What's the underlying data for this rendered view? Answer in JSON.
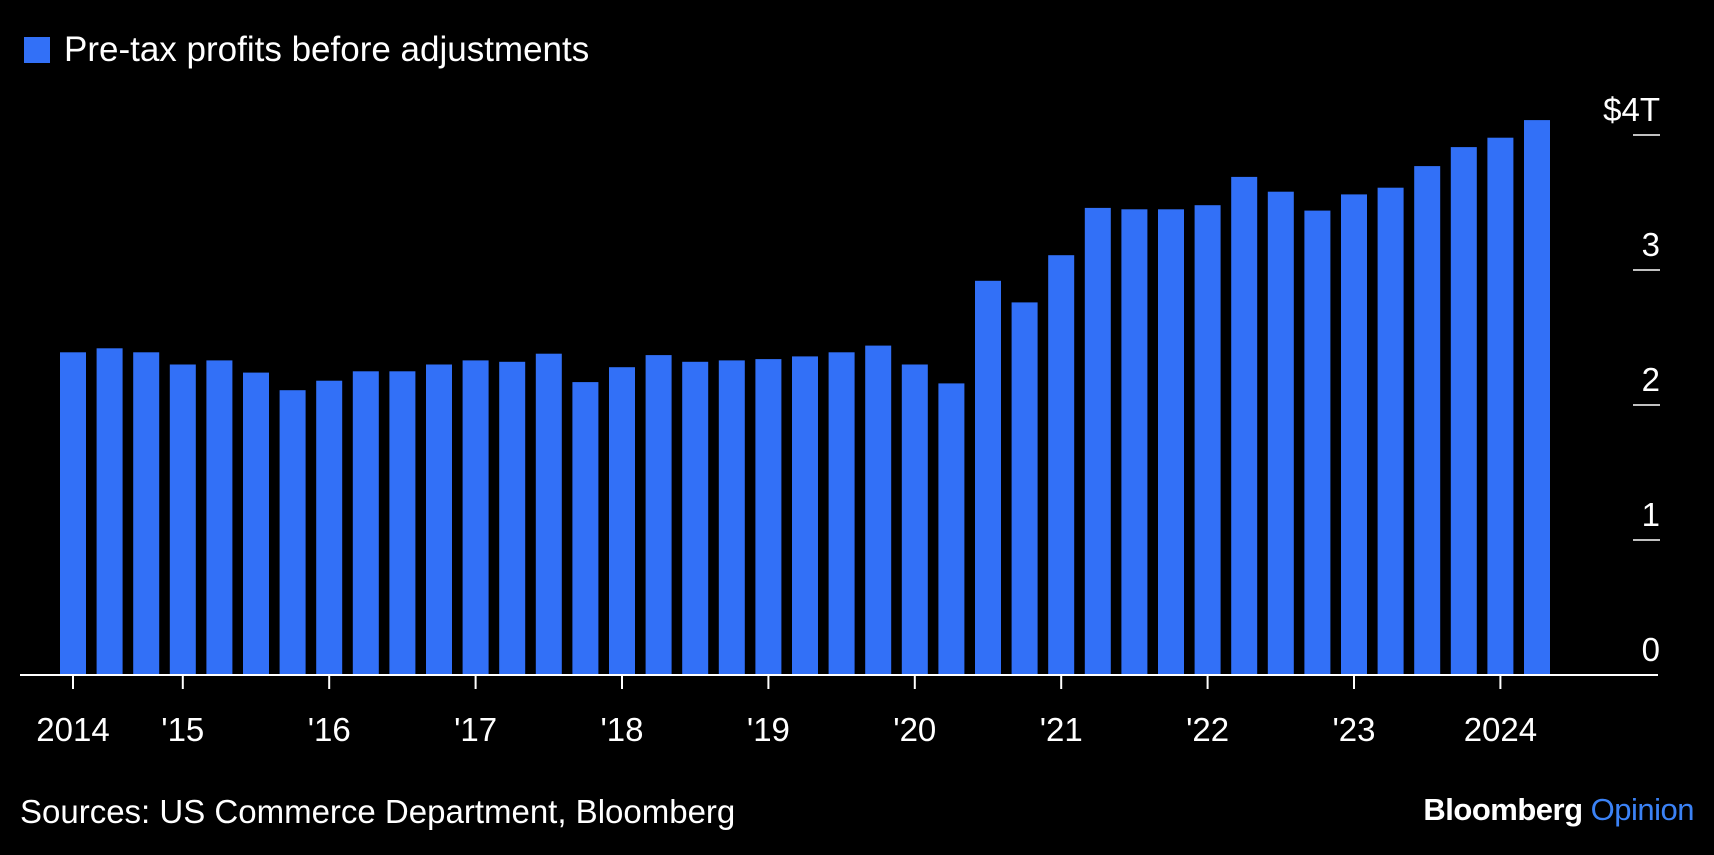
{
  "legend": {
    "label": "Pre-tax profits before adjustments",
    "color": "#3270f7"
  },
  "source": "Sources: US Commerce Department, Bloomberg",
  "brand": {
    "primary": "Bloomberg",
    "secondary": "Opinion",
    "primary_color": "#ffffff",
    "secondary_color": "#3b82f6"
  },
  "chart_data": {
    "type": "bar",
    "title": "",
    "series": [
      {
        "name": "Pre-tax profits before adjustments",
        "color": "#3270f7",
        "values": [
          2.39,
          2.42,
          2.39,
          2.3,
          2.33,
          2.24,
          2.11,
          2.18,
          2.25,
          2.25,
          2.3,
          2.33,
          2.32,
          2.38,
          2.17,
          2.28,
          2.37,
          2.32,
          2.33,
          2.34,
          2.36,
          2.39,
          2.44,
          2.3,
          2.16,
          2.92,
          2.76,
          3.11,
          3.46,
          3.45,
          3.45,
          3.48,
          3.69,
          3.58,
          3.44,
          3.56,
          3.61,
          3.77,
          3.91,
          3.98,
          4.11
        ]
      }
    ],
    "x_tick_labels": [
      "2014",
      "'15",
      "'16",
      "'17",
      "'18",
      "'19",
      "'20",
      "'21",
      "'22",
      "'23",
      "2024"
    ],
    "y_ticks": [
      0,
      1,
      2,
      3,
      4
    ],
    "y_tick_labels": [
      "0",
      "1",
      "2",
      "3",
      "$4T"
    ],
    "ylim": [
      0,
      4.5
    ],
    "xlabel": "",
    "ylabel": "",
    "legend_position": "top-left"
  }
}
